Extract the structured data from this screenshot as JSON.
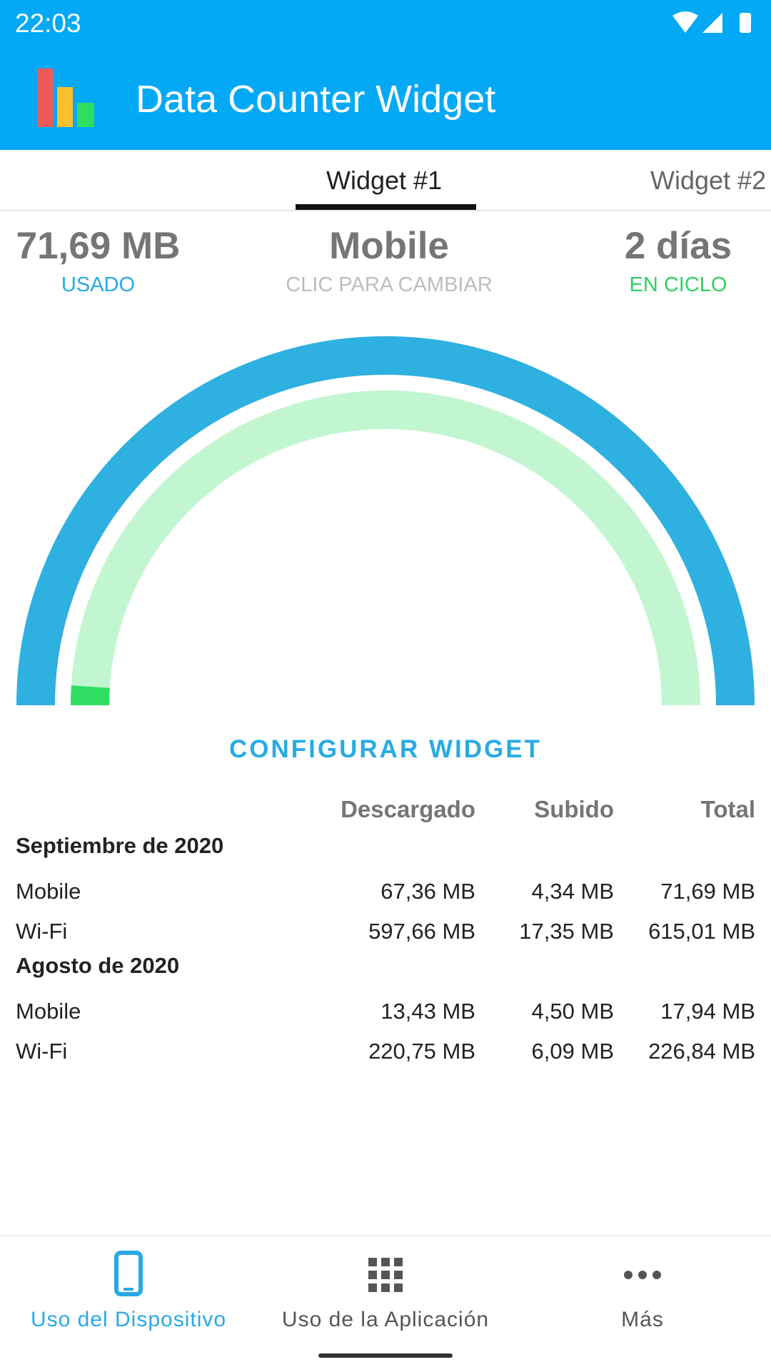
{
  "status_bar": {
    "time": "22:03"
  },
  "app": {
    "title": "Data Counter Widget"
  },
  "tabs": [
    {
      "label": "Widget #1"
    },
    {
      "label": "Widget #2"
    }
  ],
  "summary": {
    "used_value": "71,69 MB",
    "used_label": "USADO",
    "network_value": "Mobile",
    "network_label": "CLIC PARA CAMBIAR",
    "days_value": "2 días",
    "days_label": "EN CICLO"
  },
  "gauge": {
    "outer_color": "#2eb0e0",
    "inner_track_color": "#c2f6d1",
    "inner_fill_color": "#2fdd63",
    "outer_fraction": 1.0,
    "inner_fraction": 0.02
  },
  "config_button": {
    "label": "CONFIGURAR WIDGET"
  },
  "usage_table": {
    "headers": {
      "downloaded": "Descargado",
      "uploaded": "Subido",
      "total": "Total"
    },
    "groups": [
      {
        "month": "Septiembre de 2020",
        "rows": [
          {
            "name": "Mobile",
            "downloaded": "67,36 MB",
            "uploaded": "4,34 MB",
            "total": "71,69 MB"
          },
          {
            "name": "Wi-Fi",
            "downloaded": "597,66 MB",
            "uploaded": "17,35 MB",
            "total": "615,01 MB"
          }
        ]
      },
      {
        "month": "Agosto de 2020",
        "rows": [
          {
            "name": "Mobile",
            "downloaded": "13,43 MB",
            "uploaded": "4,50 MB",
            "total": "17,94 MB"
          },
          {
            "name": "Wi-Fi",
            "downloaded": "220,75 MB",
            "uploaded": "6,09 MB",
            "total": "226,84 MB"
          }
        ]
      }
    ]
  },
  "bottom_nav": [
    {
      "label": "Uso del Dispositivo",
      "icon": "phone-icon",
      "active": true
    },
    {
      "label": "Uso de la Aplicación",
      "icon": "grid-icon",
      "active": false
    },
    {
      "label": "Más",
      "icon": "more-icon",
      "active": false
    }
  ],
  "colors": {
    "primary": "#03a9f4",
    "accent": "#29abe2",
    "used_label": "#29a9e4",
    "days_label": "#2ed160",
    "hint_label": "#bdbdbd"
  }
}
